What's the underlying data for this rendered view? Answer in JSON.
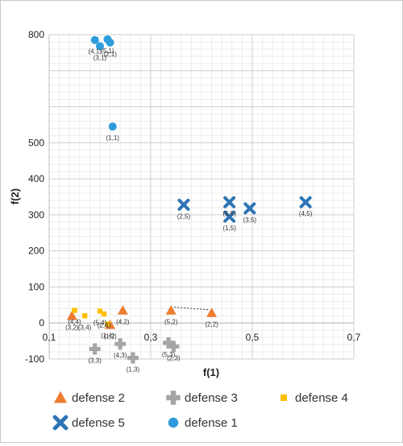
{
  "chart_data": {
    "type": "scatter",
    "xlabel": "f(1)",
    "ylabel": "f(2)",
    "xlim": [
      0.1,
      0.7
    ],
    "ylim": [
      -100,
      800
    ],
    "x_ticks": [
      {
        "value": 0.1,
        "label": "0,1"
      },
      {
        "value": 0.3,
        "label": "0,3"
      },
      {
        "value": 0.5,
        "label": "0,5"
      },
      {
        "value": 0.7,
        "label": "0,7"
      }
    ],
    "y_ticks": [
      {
        "value": -100,
        "label": "-100"
      },
      {
        "value": 0,
        "label": "0"
      },
      {
        "value": 100,
        "label": "100"
      },
      {
        "value": 200,
        "label": "200"
      },
      {
        "value": 300,
        "label": "300"
      },
      {
        "value": 400,
        "label": "400"
      },
      {
        "value": 500,
        "label": "500"
      },
      {
        "value": 800,
        "label": "800"
      }
    ],
    "grid": true,
    "legend_position": "bottom",
    "series": [
      {
        "name": "defense 2",
        "marker": "triangle",
        "color": "#ED7D31",
        "points": [
          {
            "x": 0.145,
            "y": 20,
            "label": "(3,2)"
          },
          {
            "x": 0.22,
            "y": -5,
            "label": "(1,2)"
          },
          {
            "x": 0.245,
            "y": 35,
            "label": "(4,2)"
          },
          {
            "x": 0.34,
            "y": 35,
            "label": "(5,2)"
          },
          {
            "x": 0.42,
            "y": 28,
            "label": "(2,2)"
          }
        ]
      },
      {
        "name": "defense 3",
        "marker": "plus",
        "color": "#A5A5A5",
        "points": [
          {
            "x": 0.19,
            "y": -72,
            "label": "(3,3)"
          },
          {
            "x": 0.24,
            "y": -58,
            "label": "(4,3)"
          },
          {
            "x": 0.265,
            "y": -97,
            "label": "(1,3)"
          },
          {
            "x": 0.335,
            "y": -55,
            "label": "(5,3)"
          },
          {
            "x": 0.345,
            "y": -65,
            "label": "(2,3)"
          }
        ]
      },
      {
        "name": "defense 4",
        "marker": "square",
        "color": "#FFC000",
        "points": [
          {
            "x": 0.15,
            "y": 35,
            "label": "(4,4)"
          },
          {
            "x": 0.17,
            "y": 20,
            "label": "(3,4)"
          },
          {
            "x": 0.2,
            "y": 33,
            "label": "(5,4)"
          },
          {
            "x": 0.208,
            "y": 25,
            "label": "(2,4)"
          },
          {
            "x": 0.215,
            "y": -3,
            "label": "(1,4)"
          }
        ]
      },
      {
        "name": "defense 5",
        "marker": "x",
        "color": "#2E75B6",
        "points": [
          {
            "x": 0.365,
            "y": 328,
            "label": "(2,5)"
          },
          {
            "x": 0.455,
            "y": 335,
            "label": "(5,5)"
          },
          {
            "x": 0.455,
            "y": 295,
            "label": "(1,5)"
          },
          {
            "x": 0.495,
            "y": 318,
            "label": "(3,5)"
          },
          {
            "x": 0.605,
            "y": 335,
            "label": "(4,5)"
          }
        ]
      },
      {
        "name": "defense 1",
        "marker": "circle",
        "color": "#2E9CDB",
        "points": [
          {
            "x": 0.19,
            "y": 785,
            "label": "(4,1)"
          },
          {
            "x": 0.215,
            "y": 787,
            "label": "(5,1)"
          },
          {
            "x": 0.22,
            "y": 778,
            "label": "(2,1)"
          },
          {
            "x": 0.2,
            "y": 768,
            "label": "(3,1)"
          },
          {
            "x": 0.225,
            "y": 545,
            "label": "(1,1)"
          }
        ]
      }
    ],
    "annotation_line": {
      "from": {
        "x": 0.34,
        "y": 35
      },
      "to": {
        "x": 0.42,
        "y": 28
      }
    }
  },
  "legend": [
    {
      "name": "defense 2",
      "marker": "triangle",
      "color": "#ED7D31"
    },
    {
      "name": "defense 3",
      "marker": "plus",
      "color": "#A5A5A5"
    },
    {
      "name": "defense 4",
      "marker": "square",
      "color": "#FFC000"
    },
    {
      "name": "defense 5",
      "marker": "x",
      "color": "#2E75B6"
    },
    {
      "name": "defense 1",
      "marker": "circle",
      "color": "#2E9CDB"
    }
  ]
}
